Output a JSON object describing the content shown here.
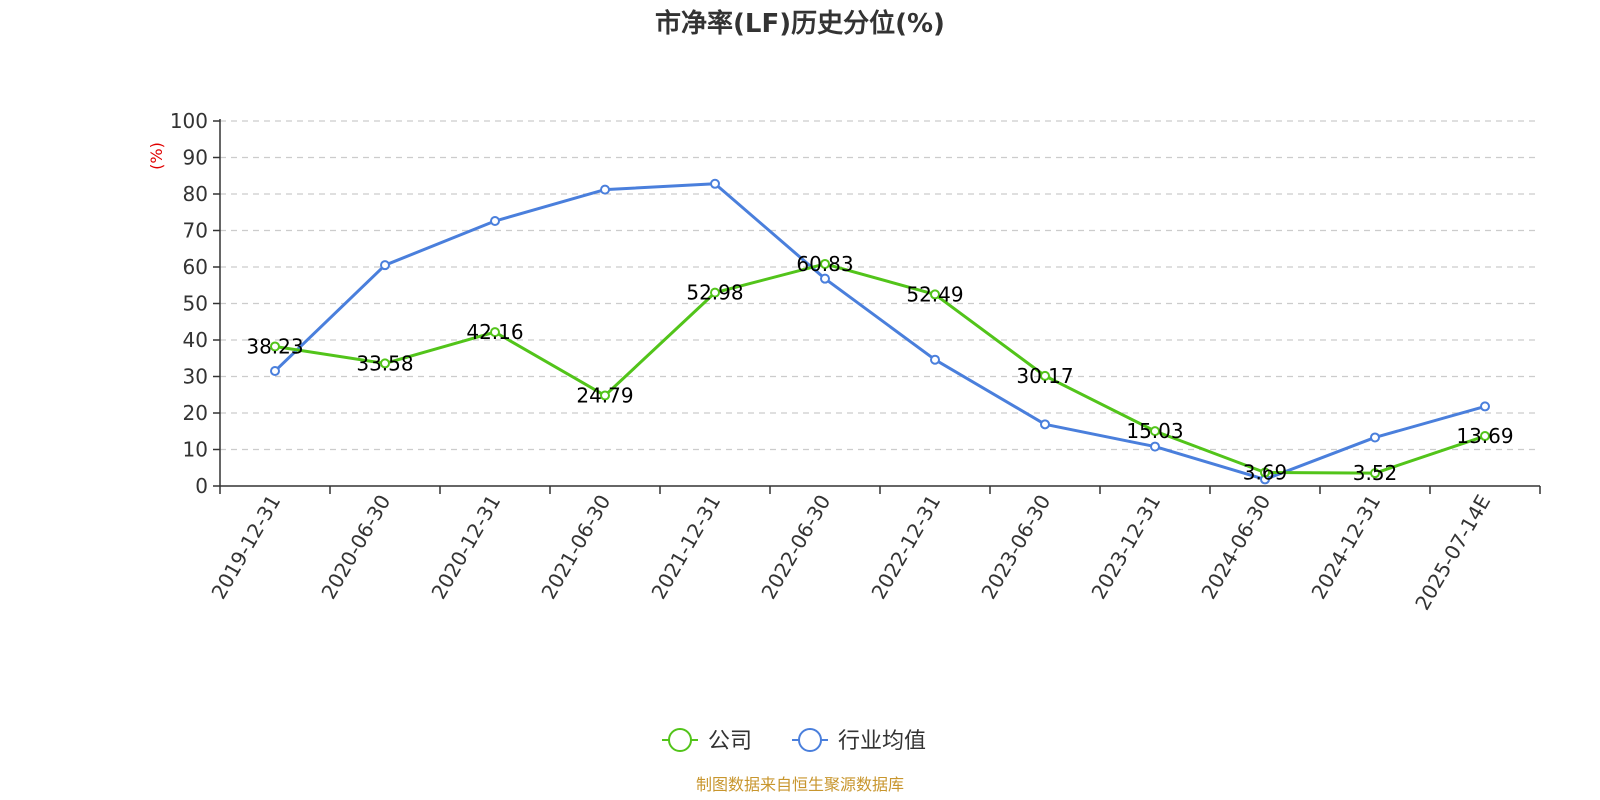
{
  "chart_data": {
    "type": "line",
    "title": "市净率(LF)历史分位(%)",
    "ylabel": "(%)",
    "xlabel": "",
    "ylim": [
      0,
      100
    ],
    "yticks": [
      0,
      10,
      20,
      30,
      40,
      50,
      60,
      70,
      80,
      90,
      100
    ],
    "grid": true,
    "legend_position": "bottom",
    "categories": [
      "2019-12-31",
      "2020-06-30",
      "2020-12-31",
      "2021-06-30",
      "2021-12-31",
      "2022-06-30",
      "2022-12-31",
      "2023-06-30",
      "2023-12-31",
      "2024-06-30",
      "2024-12-31",
      "2025-07-14E"
    ],
    "series": [
      {
        "name": "公司",
        "color": "#52c41a",
        "values": [
          38.23,
          33.58,
          42.16,
          24.79,
          52.98,
          60.83,
          52.49,
          30.17,
          15.03,
          3.69,
          3.52,
          13.69
        ],
        "labels": [
          "38.23",
          "33.58",
          "42.16",
          "24.79",
          "52.98",
          "60.83",
          "52.49",
          "30.17",
          "15.03",
          "3.69",
          "3.52",
          "13.69"
        ],
        "show_labels": true
      },
      {
        "name": "行业均值",
        "color": "#4a7fdc",
        "values": [
          31.5,
          60.5,
          72.6,
          81.2,
          82.8,
          56.8,
          34.6,
          16.9,
          10.8,
          1.8,
          13.3,
          21.8
        ],
        "show_labels": false
      }
    ],
    "source": "制图数据来自恒生聚源数据库",
    "source_color": "#c8962e",
    "ylabel_color": "#e00000"
  }
}
